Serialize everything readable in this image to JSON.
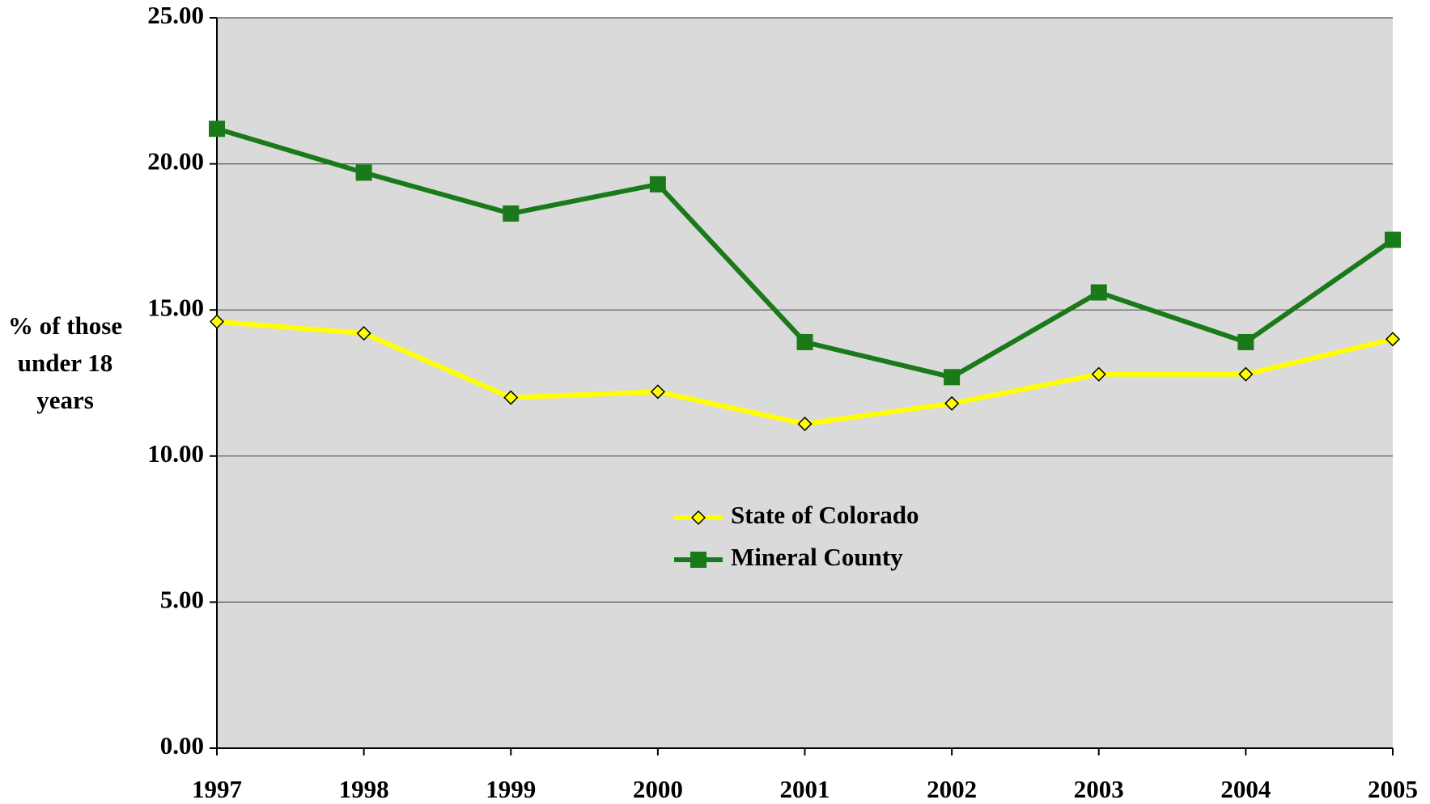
{
  "chart_data": {
    "type": "line",
    "y_label": "% of those under 18 years",
    "categories": [
      "1997",
      "1998",
      "1999",
      "2000",
      "2001",
      "2002",
      "2003",
      "2004",
      "2005"
    ],
    "series": [
      {
        "name": "State of Colorado",
        "color": "#ffff00",
        "marker": "diamond",
        "values": [
          14.6,
          14.2,
          12.0,
          12.2,
          11.1,
          11.8,
          12.8,
          12.8,
          14.0
        ]
      },
      {
        "name": "Mineral County",
        "color": "#1a7a1a",
        "marker": "square",
        "values": [
          21.2,
          19.7,
          18.3,
          19.3,
          13.9,
          12.7,
          15.6,
          13.9,
          17.4
        ]
      }
    ],
    "ylim": [
      0,
      25
    ],
    "yticks": [
      {
        "value": 0,
        "label": "0.00"
      },
      {
        "value": 5,
        "label": "5.00"
      },
      {
        "value": 10,
        "label": "10.00"
      },
      {
        "value": 15,
        "label": "15.00"
      },
      {
        "value": 20,
        "label": "20.00"
      },
      {
        "value": 25,
        "label": "25.00"
      }
    ],
    "grid": true
  }
}
